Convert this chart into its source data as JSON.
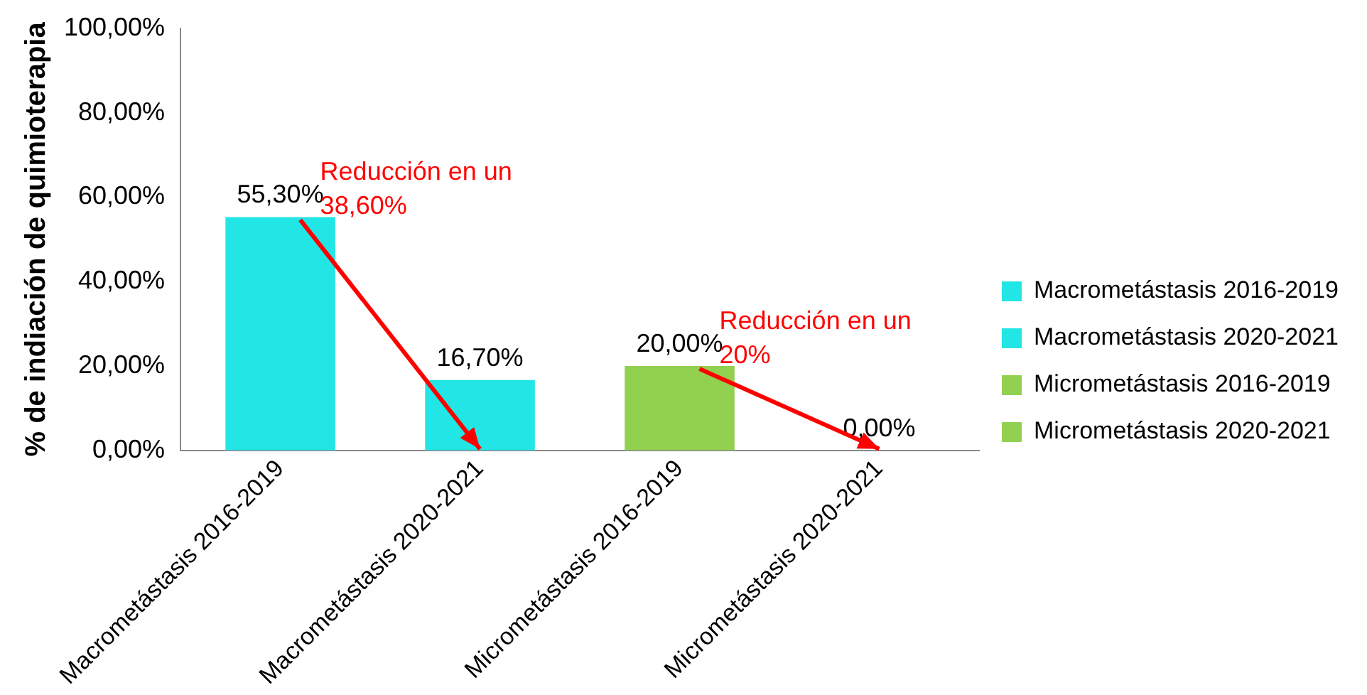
{
  "chart_data": {
    "type": "bar",
    "ylabel": "% de indiación de quimioterapia",
    "categories": [
      "Macrometástasis 2016-2019",
      "Macrometástasis 2020-2021",
      "Micrometástasis 2016-2019",
      "Micrometástasis 2020-2021"
    ],
    "series": [
      {
        "name": "Macrometástasis 2016-2019",
        "color": "#22e6e6",
        "values": [
          55.3,
          null,
          null,
          null
        ],
        "value_labels": [
          "55,30%",
          null,
          null,
          null
        ]
      },
      {
        "name": "Macrometástasis 2020-2021",
        "color": "#22e6e6",
        "values": [
          null,
          16.7,
          null,
          null
        ],
        "value_labels": [
          null,
          "16,70%",
          null,
          null
        ]
      },
      {
        "name": "Micrometástasis 2016-2019",
        "color": "#92d050",
        "values": [
          null,
          null,
          20,
          null
        ],
        "value_labels": [
          null,
          null,
          "20,00%",
          null
        ]
      },
      {
        "name": "Micrometástasis 2020-2021",
        "color": "#92d050",
        "values": [
          null,
          null,
          null,
          0
        ],
        "value_labels": [
          null,
          null,
          null,
          "0,00%"
        ]
      }
    ],
    "ylim": [
      0,
      100
    ],
    "yticks": [
      {
        "value": 0,
        "label": "0,00%"
      },
      {
        "value": 20,
        "label": "20,00%"
      },
      {
        "value": 40,
        "label": "40,00%"
      },
      {
        "value": 60,
        "label": "60,00%"
      },
      {
        "value": 80,
        "label": "80,00%"
      },
      {
        "value": 100,
        "label": "100,00%"
      }
    ],
    "annotations": [
      {
        "text": "Reducción en un  38,60%",
        "x": "Macrometástasis 2020-2021",
        "y": 0
      },
      {
        "text": "Reducción en un 20%",
        "x": "Micrometástasis 2020-2021",
        "y": 0
      }
    ],
    "grid": false,
    "legend": "right"
  }
}
